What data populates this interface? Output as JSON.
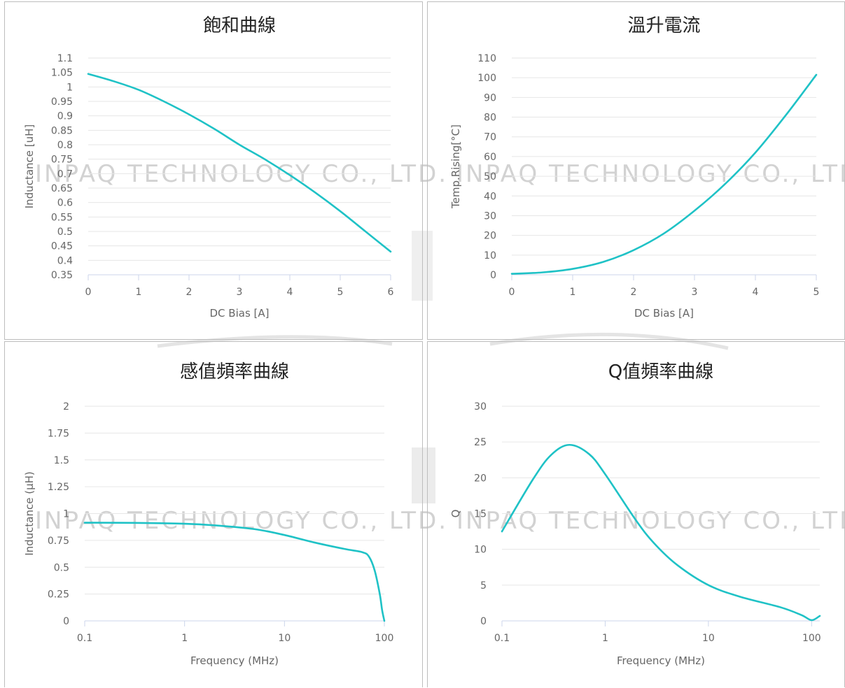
{
  "watermark": {
    "text": "INPAQ TECHNOLOGY CO., LTD.",
    "color": "#cfcfcf"
  },
  "line_color": "#1fc2c6",
  "chart_data": [
    {
      "type": "line",
      "title": "飽和曲線",
      "xlabel": "DC Bias [A]",
      "ylabel": "Inductance [uH]",
      "x_scale": "linear",
      "xlim": [
        0,
        6
      ],
      "x_ticks": [
        0,
        1,
        2,
        3,
        4,
        5,
        6
      ],
      "x_tick_labels": [
        "0",
        "1",
        "2",
        "3",
        "4",
        "5",
        "6"
      ],
      "ylim": [
        0.35,
        1.1
      ],
      "y_ticks": [
        0.35,
        0.4,
        0.45,
        0.5,
        0.55,
        0.6,
        0.65,
        0.7,
        0.75,
        0.8,
        0.85,
        0.9,
        0.95,
        1,
        1.05,
        1.1
      ],
      "y_tick_labels": [
        "0.35",
        "0.4",
        "0.45",
        "0.5",
        "0.55",
        "0.6",
        "0.65",
        "0.7",
        "0.75",
        "0.8",
        "0.85",
        "0.9",
        "0.95",
        "1",
        "1.05",
        "1.1"
      ],
      "grid": true,
      "series": [
        {
          "x": [
            0,
            0.5,
            1,
            1.5,
            2,
            2.5,
            3,
            3.5,
            4,
            4.5,
            5,
            5.5,
            6
          ],
          "y": [
            1.045,
            1.02,
            0.99,
            0.95,
            0.905,
            0.855,
            0.8,
            0.75,
            0.695,
            0.635,
            0.57,
            0.5,
            0.43
          ]
        }
      ]
    },
    {
      "type": "line",
      "title": "溫升電流",
      "xlabel": "DC Bias [A]",
      "ylabel": "Temp.Rising[°C]",
      "x_scale": "linear",
      "xlim": [
        0,
        5
      ],
      "x_ticks": [
        0,
        1,
        2,
        3,
        4,
        5
      ],
      "x_tick_labels": [
        "0",
        "1",
        "2",
        "3",
        "4",
        "5"
      ],
      "ylim": [
        0,
        110
      ],
      "y_ticks": [
        0,
        10,
        20,
        30,
        40,
        50,
        60,
        70,
        80,
        90,
        100,
        110
      ],
      "y_tick_labels": [
        "0",
        "10",
        "20",
        "30",
        "40",
        "50",
        "60",
        "70",
        "80",
        "90",
        "100",
        "110"
      ],
      "grid": true,
      "series": [
        {
          "x": [
            0,
            0.5,
            1,
            1.5,
            2,
            2.5,
            3,
            3.5,
            4,
            4.5,
            5
          ],
          "y": [
            0.5,
            1.2,
            3,
            6.5,
            12.5,
            21,
            32.5,
            46,
            62,
            81,
            101.5
          ]
        }
      ]
    },
    {
      "type": "line",
      "title": "感值頻率曲線",
      "xlabel": "Frequency (MHz)",
      "ylabel": "Inductance (µH)",
      "x_scale": "log",
      "xlim": [
        0.1,
        100
      ],
      "x_ticks": [
        0.1,
        1,
        10,
        100
      ],
      "x_tick_labels": [
        "0.1",
        "1",
        "10",
        "100"
      ],
      "ylim": [
        0,
        2
      ],
      "y_ticks": [
        0,
        0.25,
        0.5,
        0.75,
        1,
        1.25,
        1.5,
        1.75,
        2
      ],
      "y_tick_labels": [
        "0",
        "0.25",
        "0.5",
        "0.75",
        "1",
        "1.25",
        "1.5",
        "1.75",
        "2"
      ],
      "grid": true,
      "series": [
        {
          "x": [
            0.1,
            0.3,
            1,
            2,
            5,
            10,
            20,
            40,
            60,
            70,
            80,
            90,
            95,
            100
          ],
          "y": [
            0.915,
            0.913,
            0.905,
            0.89,
            0.855,
            0.8,
            0.73,
            0.67,
            0.64,
            0.6,
            0.47,
            0.25,
            0.1,
            0.0
          ]
        }
      ]
    },
    {
      "type": "line",
      "title": "Q值頻率曲線",
      "xlabel": "Frequency (MHz)",
      "ylabel": "Q",
      "x_scale": "log",
      "xlim": [
        0.1,
        120
      ],
      "x_ticks": [
        0.1,
        1,
        10,
        100
      ],
      "x_tick_labels": [
        "0.1",
        "1",
        "10",
        "100"
      ],
      "ylim": [
        0,
        30
      ],
      "y_ticks": [
        0,
        5,
        10,
        15,
        20,
        25,
        30
      ],
      "y_tick_labels": [
        "0",
        "5",
        "10",
        "15",
        "20",
        "25",
        "30"
      ],
      "grid": true,
      "series": [
        {
          "x": [
            0.1,
            0.2,
            0.3,
            0.45,
            0.7,
            1,
            2,
            3,
            5,
            10,
            20,
            50,
            80,
            100,
            120
          ],
          "y": [
            12.5,
            19.8,
            23.2,
            24.6,
            23.3,
            20.5,
            14,
            10.8,
            7.8,
            5.0,
            3.4,
            1.9,
            0.8,
            0.1,
            0.7
          ]
        }
      ]
    }
  ]
}
